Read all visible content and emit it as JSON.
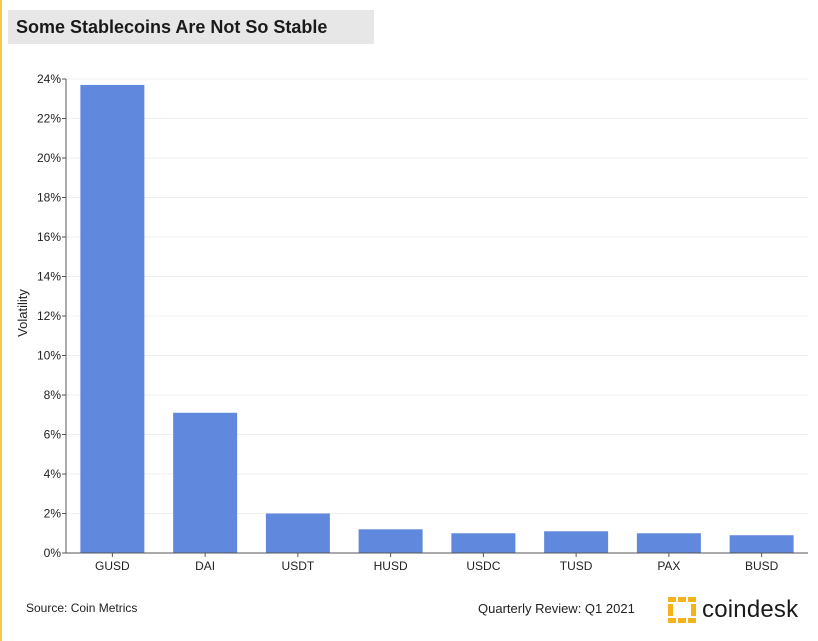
{
  "header": {
    "title": "Some Stablecoins Are Not So Stable"
  },
  "footer": {
    "source": "Source: Coin Metrics",
    "review": "Quarterly Review: Q1 2021",
    "brand": "coindesk"
  },
  "colors": {
    "bar": "#6088dc",
    "brand_accent": "#f5b31b",
    "title_bg": "#e7e7e7"
  },
  "chart_data": {
    "type": "bar",
    "title": "Some Stablecoins Are Not So Stable",
    "xlabel": "",
    "ylabel": "Volatility",
    "categories": [
      "GUSD",
      "DAI",
      "USDT",
      "HUSD",
      "USDC",
      "TUSD",
      "PAX",
      "BUSD"
    ],
    "values": [
      23.7,
      7.1,
      2.0,
      1.2,
      1.0,
      1.1,
      1.0,
      0.9
    ],
    "ylim": [
      0,
      24
    ],
    "yticks": [
      0,
      2,
      4,
      6,
      8,
      10,
      12,
      14,
      16,
      18,
      20,
      22,
      24
    ],
    "ytick_labels": [
      "0%",
      "2%",
      "4%",
      "6%",
      "8%",
      "10%",
      "12%",
      "14%",
      "16%",
      "18%",
      "20%",
      "22%",
      "24%"
    ],
    "grid": true,
    "legend": "none"
  }
}
